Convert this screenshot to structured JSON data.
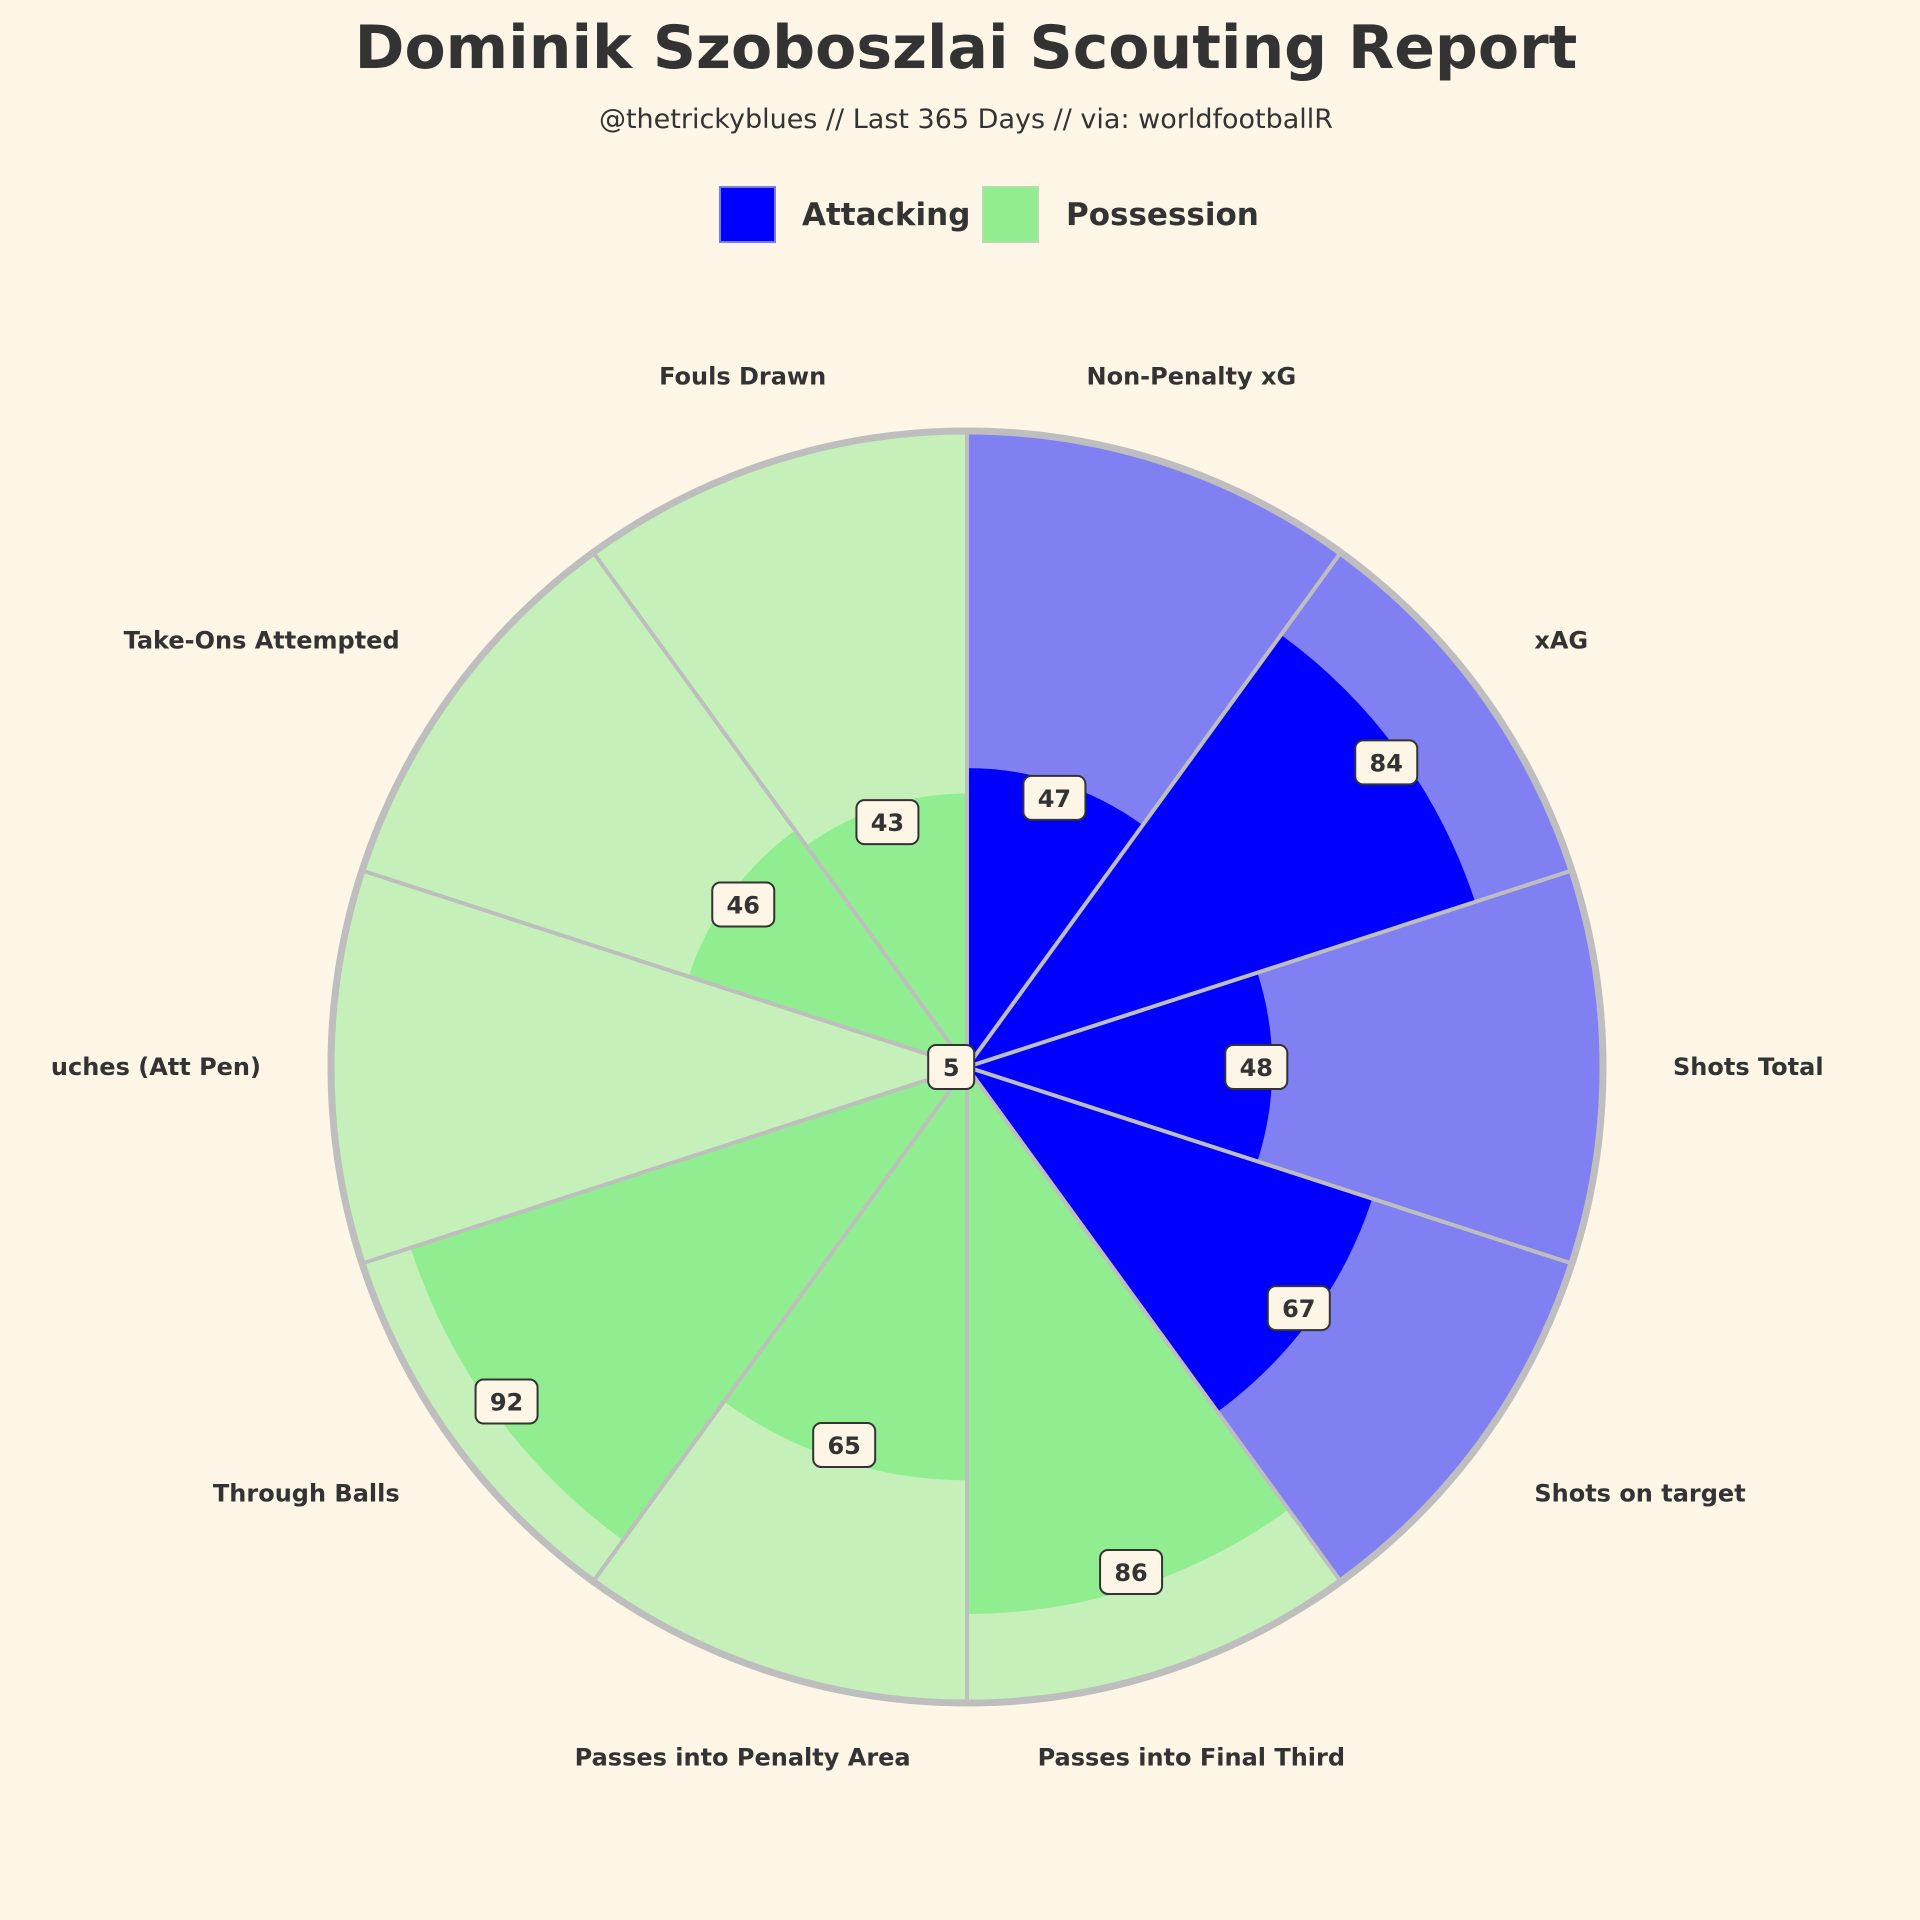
{
  "chart_data": {
    "type": "polar-bar",
    "title": "Dominik Szoboszlai Scouting Report",
    "subtitle": "@thetrickyblues // Last 365 Days // via: worldfootballR",
    "legend": {
      "placement": "top-center",
      "items": [
        {
          "name": "Attacking",
          "color": "#0000ff",
          "shade": "#8080f2"
        },
        {
          "name": "Possession",
          "color": "#90ee90",
          "shade": "#c6f0b9"
        }
      ]
    },
    "value_range": [
      0,
      100
    ],
    "grid": false,
    "parameters": [
      {
        "label": "Non-Penalty xG",
        "value": 47,
        "group": "Attacking"
      },
      {
        "label": "xAG",
        "value": 84,
        "group": "Attacking"
      },
      {
        "label": "Shots Total",
        "value": 48,
        "group": "Attacking"
      },
      {
        "label": "Shots on target",
        "value": 67,
        "group": "Attacking"
      },
      {
        "label": "Passes into Final Third",
        "value": 86,
        "group": "Possession"
      },
      {
        "label": "Passes into Penalty Area",
        "value": 65,
        "group": "Possession"
      },
      {
        "label": "Through Balls",
        "value": 92,
        "group": "Possession"
      },
      {
        "label": "uches (Att Pen)",
        "value": 5,
        "group": "Possession"
      },
      {
        "label": "Take-Ons Attempted",
        "value": 46,
        "group": "Possession"
      },
      {
        "label": "Fouls Drawn",
        "value": 43,
        "group": "Possession"
      }
    ],
    "colors": {
      "background": "#fdf5e6",
      "outline": "#bebebe",
      "text": "#333333"
    }
  }
}
